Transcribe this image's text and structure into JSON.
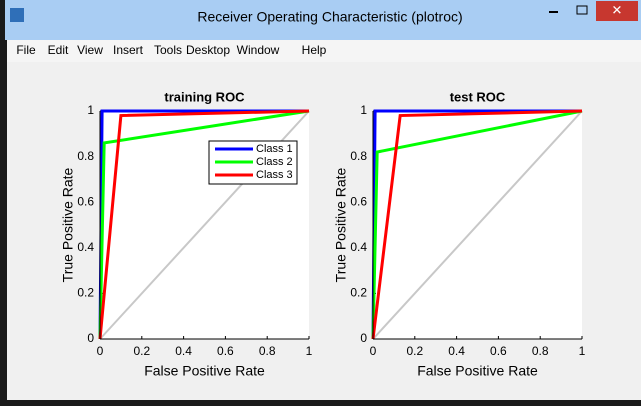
{
  "window": {
    "title": "Receiver Operating Characteristic (plotroc)",
    "menu": [
      "File",
      "Edit",
      "View",
      "Insert",
      "Tools",
      "Desktop",
      "Window",
      "Help"
    ]
  },
  "chart_data": [
    {
      "type": "line",
      "title": "training ROC",
      "x_label": "False Positive Rate",
      "y_label": "True Positive Rate",
      "xlim": [
        0,
        1
      ],
      "ylim": [
        0,
        1
      ],
      "xticks": [
        0,
        0.2,
        0.4,
        0.6,
        0.8,
        1
      ],
      "yticks": [
        0,
        0.2,
        0.4,
        0.6,
        0.8,
        1
      ],
      "legend": "upper right",
      "reference_line": {
        "color": "#c8c8c8",
        "x": [
          0,
          1
        ],
        "values": [
          0,
          1
        ]
      },
      "series": [
        {
          "name": "Class 1",
          "color": "#0000ff",
          "x": [
            0,
            0.01,
            1
          ],
          "values": [
            0,
            1,
            1
          ]
        },
        {
          "name": "Class 2",
          "color": "#00ff00",
          "x": [
            0,
            0.02,
            1
          ],
          "values": [
            0,
            0.86,
            1
          ]
        },
        {
          "name": "Class 3",
          "color": "#ff0000",
          "x": [
            0,
            0.1,
            1
          ],
          "values": [
            0,
            0.98,
            1
          ]
        }
      ]
    },
    {
      "type": "line",
      "title": "test ROC",
      "x_label": "False Positive Rate",
      "y_label": "True Positive Rate",
      "xlim": [
        0,
        1
      ],
      "ylim": [
        0,
        1
      ],
      "xticks": [
        0,
        0.2,
        0.4,
        0.6,
        0.8,
        1
      ],
      "yticks": [
        0,
        0.2,
        0.4,
        0.6,
        0.8,
        1
      ],
      "reference_line": {
        "color": "#c8c8c8",
        "x": [
          0,
          1
        ],
        "values": [
          0,
          1
        ]
      },
      "series": [
        {
          "name": "Class 1",
          "color": "#0000ff",
          "x": [
            0,
            0.01,
            1
          ],
          "values": [
            0,
            1,
            1
          ]
        },
        {
          "name": "Class 2",
          "color": "#00ff00",
          "x": [
            0,
            0.02,
            1
          ],
          "values": [
            0,
            0.82,
            1
          ]
        },
        {
          "name": "Class 3",
          "color": "#ff0000",
          "x": [
            0,
            0.13,
            1
          ],
          "values": [
            0,
            0.98,
            1
          ]
        }
      ]
    }
  ]
}
